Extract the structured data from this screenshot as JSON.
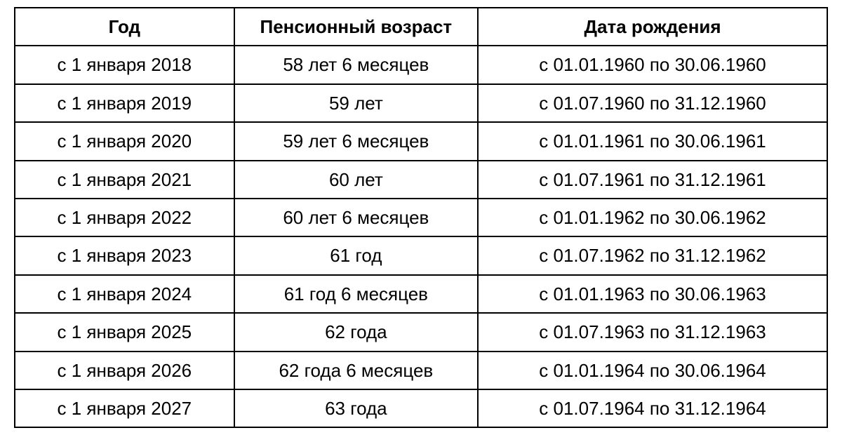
{
  "table": {
    "type": "table",
    "background_color": "#ffffff",
    "border_color": "#000000",
    "text_color": "#000000",
    "font_size_pt": 20,
    "header_font_weight": "bold",
    "cell_font_weight": "normal",
    "column_widths_pct": [
      27,
      30,
      43
    ],
    "alignment": "center",
    "columns": [
      "Год",
      "Пенсионный возраст",
      "Дата рождения"
    ],
    "rows": [
      [
        "с 1 января 2018",
        "58 лет 6 месяцев",
        "с 01.01.1960 по 30.06.1960"
      ],
      [
        "с 1 января 2019",
        "59 лет",
        "с 01.07.1960 по 31.12.1960"
      ],
      [
        "с 1 января 2020",
        "59 лет 6 месяцев",
        "с 01.01.1961 по 30.06.1961"
      ],
      [
        "с 1 января 2021",
        "60 лет",
        "с 01.07.1961 по 31.12.1961"
      ],
      [
        "с 1 января 2022",
        "60 лет 6 месяцев",
        "с 01.01.1962 по 30.06.1962"
      ],
      [
        "с 1 января 2023",
        "61 год",
        "с 01.07.1962 по 31.12.1962"
      ],
      [
        "с 1 января 2024",
        "61 год 6 месяцев",
        "с 01.01.1963 по 30.06.1963"
      ],
      [
        "с 1 января 2025",
        "62 года",
        "с 01.07.1963 по 31.12.1963"
      ],
      [
        "с 1 января 2026",
        "62 года 6 месяцев",
        "с 01.01.1964 по 30.06.1964"
      ],
      [
        "с 1 января 2027",
        "63 года",
        "с 01.07.1964 по 31.12.1964"
      ]
    ]
  }
}
